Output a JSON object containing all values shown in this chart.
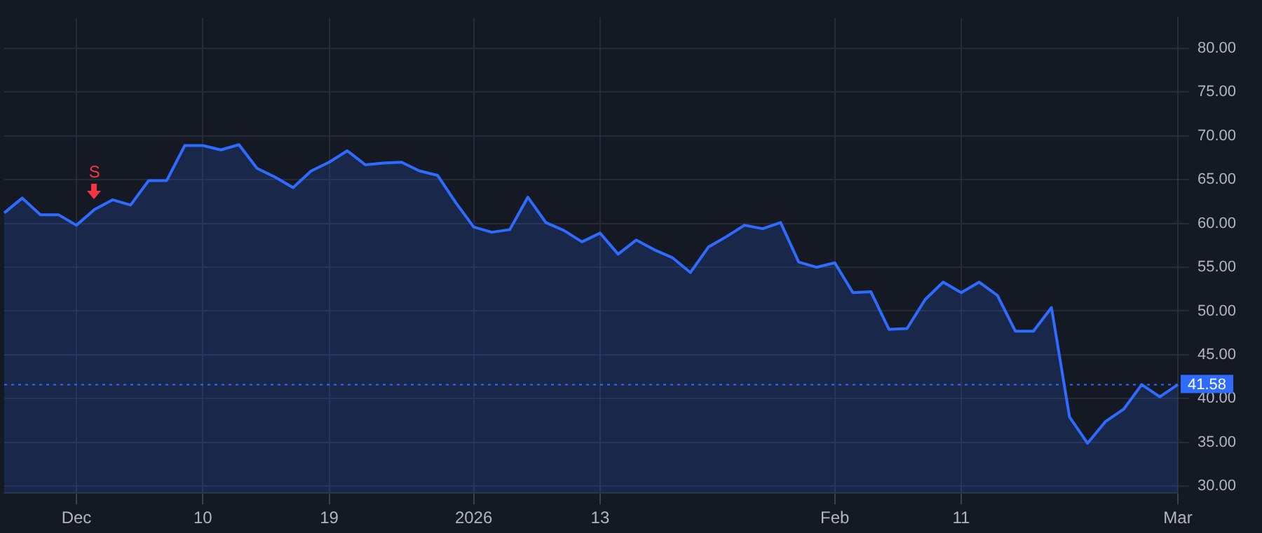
{
  "chart_data": {
    "type": "area",
    "categories": [
      null,
      null,
      null,
      null,
      "Dec",
      null,
      null,
      null,
      null,
      null,
      null,
      "10",
      null,
      null,
      null,
      null,
      null,
      null,
      "19",
      null,
      null,
      null,
      null,
      null,
      null,
      null,
      "2026",
      null,
      null,
      null,
      null,
      null,
      null,
      "13",
      null,
      null,
      null,
      null,
      null,
      null,
      null,
      null,
      null,
      null,
      null,
      null,
      "Feb",
      null,
      null,
      null,
      null,
      null,
      null,
      "11",
      null,
      null,
      null,
      null,
      null,
      null,
      null,
      null,
      null,
      null,
      null,
      "Mar"
    ],
    "series": [
      {
        "color": "#2f6bff",
        "values": [
          61.2,
          62.9,
          61.0,
          61.0,
          59.8,
          61.6,
          62.7,
          62.1,
          64.9,
          64.9,
          68.9,
          68.9,
          68.4,
          69.0,
          66.3,
          65.3,
          64.1,
          66.0,
          67.0,
          68.3,
          66.7,
          66.9,
          67.0,
          66.0,
          65.5,
          62.4,
          59.6,
          59.0,
          59.3,
          63.0,
          60.1,
          59.2,
          57.9,
          58.9,
          56.5,
          58.1,
          57.0,
          56.1,
          54.4,
          57.3,
          58.5,
          59.8,
          59.4,
          60.1,
          55.6,
          55.0,
          55.5,
          52.1,
          52.2,
          47.9,
          48.0,
          51.3,
          53.3,
          52.1,
          53.3,
          51.8,
          47.7,
          47.7,
          50.4,
          37.9,
          34.9,
          37.4,
          38.8,
          41.6,
          40.2,
          41.6
        ]
      }
    ],
    "ylim": [
      29.2,
      83.5
    ],
    "yticks": [
      {
        "value": 30,
        "label": "30.00"
      },
      {
        "value": 35,
        "label": "35.00"
      },
      {
        "value": 40,
        "label": "40.00"
      },
      {
        "value": 45,
        "label": "45.00"
      },
      {
        "value": 50,
        "label": "50.00"
      },
      {
        "value": 55,
        "label": "55.00"
      },
      {
        "value": 60,
        "label": "60.00"
      },
      {
        "value": 65,
        "label": "65.00"
      },
      {
        "value": 70,
        "label": "70.00"
      },
      {
        "value": 75,
        "label": "75.00"
      },
      {
        "value": 80,
        "label": "80.00"
      }
    ],
    "ref_lines": [
      {
        "axis": "y",
        "value": 41.58,
        "label": "41.58",
        "color": "#2f6bff",
        "line_style": "dotted"
      }
    ],
    "annotations": [
      {
        "text": "S",
        "y": 61.6
      }
    ],
    "grid": true,
    "legend": false,
    "marker": "none",
    "line_style": "solid"
  }
}
